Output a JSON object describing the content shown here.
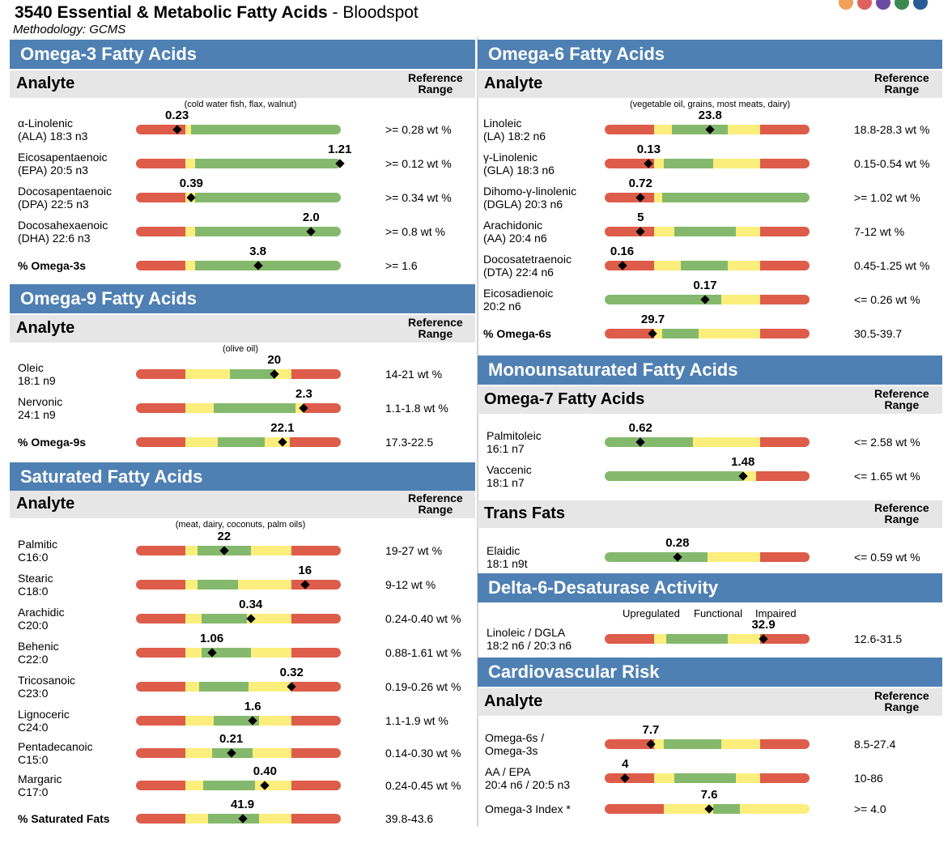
{
  "header": {
    "title_bold": "3540 Essential & Metabolic Fatty Acids",
    "title_rest": " - Bloodspot",
    "subtitle": "Methodology: GCMS"
  },
  "colors": {
    "dots": [
      "#f0a058",
      "#e06060",
      "#6a4aa0",
      "#3a8a50",
      "#2a5a98"
    ],
    "red": "#de5c4a",
    "yellow": "#fcee7c",
    "green": "#84b96d",
    "section": "#4f80b3",
    "subheader": "#e6e6e6"
  },
  "common": {
    "analyte": "Analyte",
    "reference_range_1": "Reference",
    "reference_range_2": "Range"
  },
  "sections": {
    "omega3": {
      "title": "Omega-3 Fatty Acids",
      "foods": "(cold water fish, flax, walnut)"
    },
    "omega9": {
      "title": "Omega-9 Fatty Acids",
      "foods": "(olive oil)"
    },
    "saturated": {
      "title": "Saturated Fatty Acids",
      "foods": "(meat, dairy, coconuts, palm oils)"
    },
    "omega6": {
      "title": "Omega-6 Fatty Acids",
      "foods": "(vegetable oil, grains, most meats, dairy)"
    },
    "mufa": {
      "title": "Monounsaturated Fatty Acids",
      "subtitle": "Omega-7 Fatty Acids"
    },
    "trans": {
      "title": "Trans Fats"
    },
    "d6d": {
      "title": "Delta-6-Desaturase Activity",
      "labels": [
        "Upregulated",
        "Functional",
        "Impaired"
      ]
    },
    "cardio": {
      "title": "Cardiovascular Risk"
    }
  },
  "rows": {
    "omega3": [
      {
        "n1": "α-Linolenic",
        "n2": "(ALA) 18:3 n3",
        "value": "0.23",
        "ref": ">= 0.28 wt %",
        "m": 0.2,
        "bar": [
          [
            "r",
            0.24
          ],
          [
            "y",
            0.03
          ],
          [
            "g",
            0.73
          ]
        ]
      },
      {
        "n1": "Eicosapentaenoic",
        "n2": "(EPA) 20:5 n3",
        "value": "1.21",
        "ref": ">= 0.12 wt %",
        "m": 0.995,
        "bar": [
          [
            "r",
            0.24
          ],
          [
            "y",
            0.05
          ],
          [
            "g",
            0.71
          ]
        ]
      },
      {
        "n1": "Docosapentaenoic",
        "n2": "(DPA) 22:5 n3",
        "value": "0.39",
        "ref": ">= 0.34 wt %",
        "m": 0.27,
        "bar": [
          [
            "r",
            0.24
          ],
          [
            "y",
            0.05
          ],
          [
            "g",
            0.71
          ]
        ]
      },
      {
        "n1": "Docosahexaenoic",
        "n2": "(DHA) 22:6 n3",
        "value": "2.0",
        "ref": ">= 0.8 wt %",
        "m": 0.855,
        "bar": [
          [
            "r",
            0.24
          ],
          [
            "y",
            0.05
          ],
          [
            "g",
            0.71
          ]
        ]
      },
      {
        "n1": "% Omega-3s",
        "n2": "",
        "value": "3.8",
        "ref": ">= 1.6",
        "m": 0.595,
        "bold": true,
        "bar": [
          [
            "r",
            0.24
          ],
          [
            "y",
            0.05
          ],
          [
            "g",
            0.71
          ]
        ]
      }
    ],
    "omega9": [
      {
        "n1": "Oleic",
        "n2": "18:1 n9",
        "value": "20",
        "ref": "14-21 wt %",
        "m": 0.675,
        "bar": [
          [
            "r",
            0.24
          ],
          [
            "y",
            0.22
          ],
          [
            "g",
            0.22
          ],
          [
            "y",
            0.08
          ],
          [
            "r",
            0.24
          ]
        ]
      },
      {
        "n1": "Nervonic",
        "n2": "24:1 n9",
        "value": "2.3",
        "ref": "1.1-1.8 wt %",
        "m": 0.82,
        "bar": [
          [
            "r",
            0.24
          ],
          [
            "y",
            0.14
          ],
          [
            "g",
            0.4
          ],
          [
            "y",
            0.04
          ],
          [
            "r",
            0.18
          ]
        ]
      },
      {
        "n1": "% Omega-9s",
        "n2": "",
        "value": "22.1",
        "ref": "17.3-22.5",
        "m": 0.715,
        "bold": true,
        "bar": [
          [
            "r",
            0.24
          ],
          [
            "y",
            0.16
          ],
          [
            "g",
            0.23
          ],
          [
            "y",
            0.12
          ],
          [
            "r",
            0.25
          ]
        ]
      }
    ],
    "saturated": [
      {
        "n1": "Palmitic",
        "n2": "C16:0",
        "value": "22",
        "ref": "19-27 wt %",
        "m": 0.43,
        "bar": [
          [
            "r",
            0.24
          ],
          [
            "y",
            0.06
          ],
          [
            "g",
            0.26
          ],
          [
            "y",
            0.2
          ],
          [
            "r",
            0.24
          ]
        ]
      },
      {
        "n1": "Stearic",
        "n2": "C18:0",
        "value": "16",
        "ref": "9-12 wt %",
        "m": 0.825,
        "bar": [
          [
            "r",
            0.24
          ],
          [
            "y",
            0.06
          ],
          [
            "g",
            0.2
          ],
          [
            "y",
            0.26
          ],
          [
            "r",
            0.24
          ]
        ]
      },
      {
        "n1": "Arachidic",
        "n2": "C20:0",
        "value": "0.34",
        "ref": "0.24-0.40 wt %",
        "m": 0.56,
        "bar": [
          [
            "r",
            0.24
          ],
          [
            "y",
            0.08
          ],
          [
            "g",
            0.22
          ],
          [
            "y",
            0.22
          ],
          [
            "r",
            0.24
          ]
        ]
      },
      {
        "n1": "Behenic",
        "n2": "C22:0",
        "value": "1.06",
        "ref": "0.88-1.61 wt %",
        "m": 0.37,
        "bar": [
          [
            "r",
            0.24
          ],
          [
            "y",
            0.08
          ],
          [
            "g",
            0.24
          ],
          [
            "y",
            0.2
          ],
          [
            "r",
            0.24
          ]
        ]
      },
      {
        "n1": "Tricosanoic",
        "n2": "C23:0",
        "value": "0.32",
        "ref": "0.19-0.26 wt %",
        "m": 0.76,
        "bar": [
          [
            "r",
            0.24
          ],
          [
            "y",
            0.07
          ],
          [
            "g",
            0.24
          ],
          [
            "y",
            0.21
          ],
          [
            "r",
            0.24
          ]
        ]
      },
      {
        "n1": "Lignoceric",
        "n2": "C24:0",
        "value": "1.6",
        "ref": "1.1-1.9 wt %",
        "m": 0.57,
        "bar": [
          [
            "r",
            0.24
          ],
          [
            "y",
            0.14
          ],
          [
            "g",
            0.22
          ],
          [
            "y",
            0.16
          ],
          [
            "r",
            0.24
          ]
        ]
      },
      {
        "n1": "Pentadecanoic",
        "n2": "C15:0",
        "value": "0.21",
        "ref": "0.14-0.30 wt %",
        "m": 0.465,
        "bar": [
          [
            "r",
            0.24
          ],
          [
            "y",
            0.13
          ],
          [
            "g",
            0.2
          ],
          [
            "y",
            0.19
          ],
          [
            "r",
            0.24
          ]
        ]
      },
      {
        "n1": "Margaric",
        "n2": "C17:0",
        "value": "0.40",
        "ref": "0.24-0.45 wt %",
        "m": 0.63,
        "bar": [
          [
            "r",
            0.24
          ],
          [
            "y",
            0.09
          ],
          [
            "g",
            0.25
          ],
          [
            "y",
            0.18
          ],
          [
            "r",
            0.24
          ]
        ]
      },
      {
        "n1": "% Saturated Fats",
        "n2": "",
        "value": "41.9",
        "ref": "39.8-43.6",
        "m": 0.52,
        "bold": true,
        "bar": [
          [
            "r",
            0.24
          ],
          [
            "y",
            0.11
          ],
          [
            "g",
            0.25
          ],
          [
            "y",
            0.16
          ],
          [
            "r",
            0.24
          ]
        ]
      }
    ],
    "omega6": [
      {
        "n1": "Linoleic",
        "n2": "(LA) 18:2 n6",
        "value": "23.8",
        "ref": "18.8-28.3 wt %",
        "m": 0.515,
        "bar": [
          [
            "r",
            0.24
          ],
          [
            "y",
            0.09
          ],
          [
            "g",
            0.27
          ],
          [
            "y",
            0.16
          ],
          [
            "r",
            0.24
          ]
        ]
      },
      {
        "n1": "γ-Linolenic",
        "n2": "(GLA) 18:3 n6",
        "value": "0.13",
        "ref": "0.15-0.54 wt %",
        "m": 0.215,
        "bar": [
          [
            "r",
            0.24
          ],
          [
            "y",
            0.05
          ],
          [
            "g",
            0.24
          ],
          [
            "y",
            0.23
          ],
          [
            "r",
            0.24
          ]
        ]
      },
      {
        "n1": "Dihomo-γ-linolenic",
        "n2": "(DGLA) 20:3 n6",
        "value": "0.72",
        "ref": ">= 1.02 wt %",
        "m": 0.175,
        "bar": [
          [
            "r",
            0.24
          ],
          [
            "y",
            0.04
          ],
          [
            "g",
            0.72
          ]
        ]
      },
      {
        "n1": "Arachidonic",
        "n2": "(AA) 20:4 n6",
        "value": "5",
        "ref": "7-12 wt %",
        "m": 0.175,
        "bar": [
          [
            "r",
            0.24
          ],
          [
            "y",
            0.1
          ],
          [
            "g",
            0.3
          ],
          [
            "y",
            0.12
          ],
          [
            "r",
            0.24
          ]
        ]
      },
      {
        "n1": "Docosatetraenoic",
        "n2": "(DTA) 22:4 n6",
        "value": "0.16",
        "ref": "0.45-1.25 wt %",
        "m": 0.085,
        "bar": [
          [
            "r",
            0.24
          ],
          [
            "y",
            0.13
          ],
          [
            "g",
            0.23
          ],
          [
            "y",
            0.16
          ],
          [
            "r",
            0.24
          ]
        ]
      },
      {
        "n1": "Eicosadienoic",
        "n2": "20:2 n6",
        "value": "0.17",
        "ref": "<= 0.26 wt %",
        "m": 0.49,
        "bar": [
          [
            "g",
            0.57
          ],
          [
            "y",
            0.19
          ],
          [
            "r",
            0.24
          ]
        ]
      },
      {
        "n1": "% Omega-6s",
        "n2": "",
        "value": "29.7",
        "ref": "30.5-39.7",
        "m": 0.235,
        "bold": true,
        "bar": [
          [
            "r",
            0.24
          ],
          [
            "y",
            0.04
          ],
          [
            "g",
            0.18
          ],
          [
            "y",
            0.3
          ],
          [
            "r",
            0.24
          ]
        ]
      }
    ],
    "mufa": [
      {
        "n1": "Palmitoleic",
        "n2": "16:1 n7",
        "value": "0.62",
        "ref": "<= 2.58 wt %",
        "m": 0.175,
        "bar": [
          [
            "g",
            0.43
          ],
          [
            "y",
            0.33
          ],
          [
            "r",
            0.24
          ]
        ]
      },
      {
        "n1": "Vaccenic",
        "n2": "18:1 n7",
        "value": "1.48",
        "ref": "<= 1.65 wt %",
        "m": 0.675,
        "bar": [
          [
            "g",
            0.67
          ],
          [
            "y",
            0.07
          ],
          [
            "r",
            0.26
          ]
        ]
      }
    ],
    "trans": [
      {
        "n1": "Elaidic",
        "n2": "18:1 n9t",
        "value": "0.28",
        "ref": "<= 0.59 wt %",
        "m": 0.355,
        "bar": [
          [
            "g",
            0.5
          ],
          [
            "y",
            0.26
          ],
          [
            "r",
            0.24
          ]
        ]
      }
    ],
    "d6d": [
      {
        "n1": "Linoleic / DGLA",
        "n2": "18:2 n6 / 20:3 n6",
        "value": "32.9",
        "ref": "12.6-31.5",
        "m": 0.775,
        "bar": [
          [
            "r",
            0.24
          ],
          [
            "y",
            0.06
          ],
          [
            "g",
            0.3
          ],
          [
            "y",
            0.16
          ],
          [
            "r",
            0.24
          ]
        ]
      }
    ],
    "cardio": [
      {
        "n1": "Omega-6s /",
        "n2": "Omega-3s",
        "value": "7.7",
        "ref": "8.5-27.4",
        "m": 0.225,
        "bar": [
          [
            "r",
            0.24
          ],
          [
            "y",
            0.05
          ],
          [
            "g",
            0.28
          ],
          [
            "y",
            0.19
          ],
          [
            "r",
            0.24
          ]
        ]
      },
      {
        "n1": "AA / EPA",
        "n2": "20:4 n6 / 20:5 n3",
        "value": "4",
        "ref": "10-86",
        "m": 0.1,
        "bar": [
          [
            "r",
            0.24
          ],
          [
            "y",
            0.1
          ],
          [
            "g",
            0.3
          ],
          [
            "y",
            0.12
          ],
          [
            "r",
            0.24
          ]
        ]
      },
      {
        "n1": "Omega-3 Index *",
        "n2": "",
        "value": "7.6",
        "ref": ">= 4.0",
        "m": 0.51,
        "bar": [
          [
            "r",
            0.29
          ],
          [
            "y",
            0.24
          ],
          [
            "g",
            0.13
          ],
          [
            "y",
            0.34
          ]
        ]
      }
    ]
  }
}
